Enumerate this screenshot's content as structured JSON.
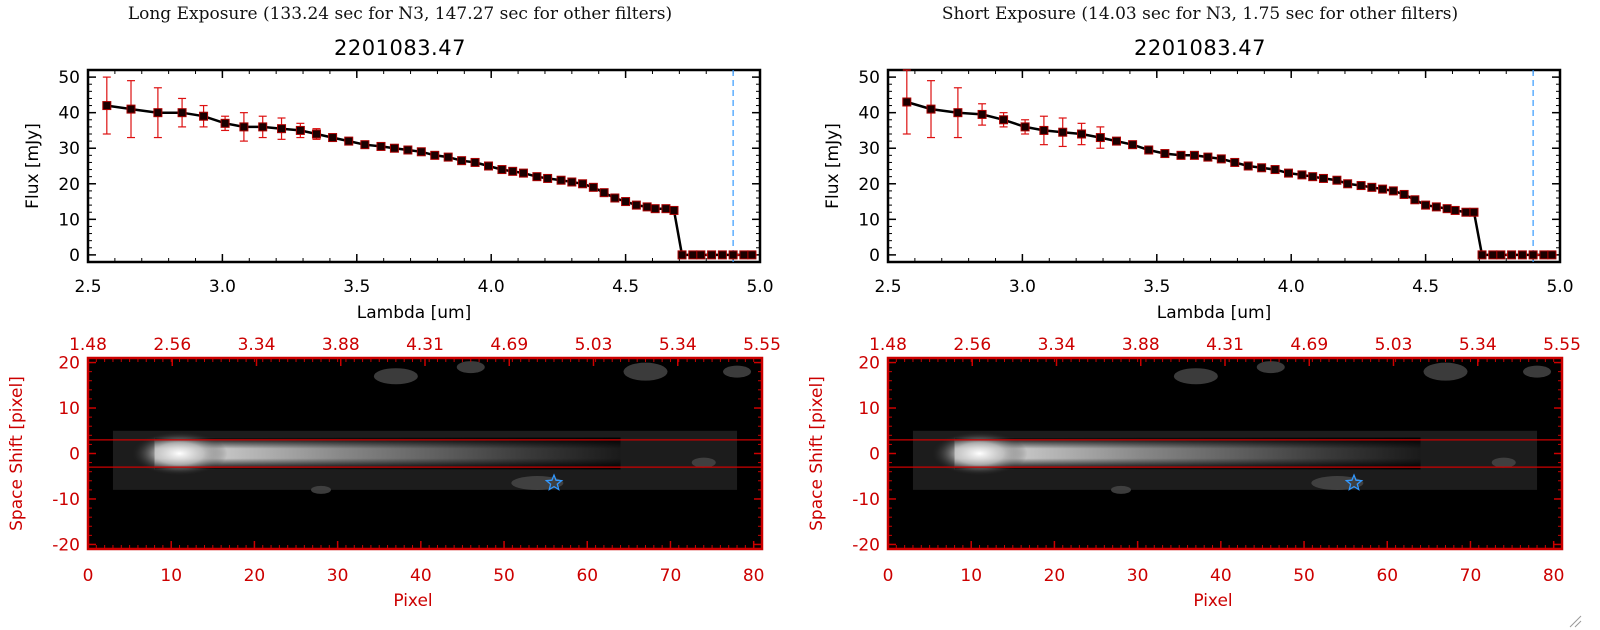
{
  "colors": {
    "red": "#cc0000",
    "line": "#000000",
    "errorbar": "#dd1111",
    "dashed": "#3399ff",
    "star": "#3399ff"
  },
  "panels": [
    {
      "exposure_title": "Long Exposure (133.24 sec for N3, 147.27 sec for other filters)",
      "plot_title": "2201083.47"
    },
    {
      "exposure_title": "Short Exposure (14.03 sec for N3, 1.75 sec for other filters)",
      "plot_title": "2201083.47"
    }
  ],
  "chart_data": [
    {
      "type": "line",
      "title": "2201083.47",
      "xlabel": "Lambda [um]",
      "ylabel": "Flux [mJy]",
      "xlim": [
        2.5,
        5.0
      ],
      "ylim": [
        -2,
        52
      ],
      "xticks": [
        "2.5",
        "3.0",
        "3.5",
        "4.0",
        "4.5",
        "5.0"
      ],
      "yticks": [
        "0",
        "10",
        "20",
        "30",
        "40",
        "50"
      ],
      "vline_x": 4.9,
      "series": [
        {
          "name": "flux",
          "x": [
            2.57,
            2.66,
            2.76,
            2.85,
            2.93,
            3.01,
            3.08,
            3.15,
            3.22,
            3.29,
            3.35,
            3.41,
            3.47,
            3.53,
            3.59,
            3.64,
            3.69,
            3.74,
            3.79,
            3.84,
            3.89,
            3.94,
            3.99,
            4.04,
            4.08,
            4.12,
            4.17,
            4.21,
            4.26,
            4.3,
            4.34,
            4.38,
            4.42,
            4.46,
            4.5,
            4.54,
            4.58,
            4.61,
            4.65,
            4.68,
            4.71,
            4.75,
            4.78,
            4.82,
            4.86,
            4.9,
            4.94,
            4.97
          ],
          "y": [
            42,
            41,
            40,
            40,
            39,
            37,
            36,
            36,
            35.5,
            35,
            34,
            33,
            32,
            31,
            30.5,
            30,
            29.5,
            29,
            28,
            27.5,
            26.5,
            26,
            25,
            24,
            23.5,
            23,
            22,
            21.5,
            21,
            20.5,
            20,
            19,
            17.5,
            16,
            15,
            14,
            13.5,
            13,
            13,
            12.5,
            0,
            0,
            0,
            0,
            0,
            0,
            0,
            0
          ],
          "err": [
            8,
            8,
            7,
            4,
            3,
            2,
            4,
            3,
            3,
            2,
            1.5,
            1,
            1,
            1,
            1,
            1,
            1,
            1,
            1,
            1,
            1,
            1,
            1,
            1,
            1,
            1,
            1,
            1,
            1,
            1,
            1,
            1,
            1,
            1,
            1,
            1,
            1,
            1,
            1,
            1,
            0,
            0,
            0,
            0,
            0,
            0,
            0,
            0
          ]
        }
      ]
    },
    {
      "type": "heatmap",
      "xlabel": "Pixel",
      "ylabel": "Space Shift [pixel]",
      "xlim": [
        0,
        81
      ],
      "ylim": [
        -21,
        21
      ],
      "xticks": [
        "0",
        "10",
        "20",
        "30",
        "40",
        "50",
        "60",
        "70",
        "80"
      ],
      "yticks": [
        "20",
        "10",
        "0",
        "-10",
        "-20"
      ],
      "top_ticks": [
        "1.48",
        "2.56",
        "3.34",
        "3.88",
        "4.31",
        "4.69",
        "5.03",
        "5.34",
        "5.55"
      ],
      "aperture_rows": [
        3,
        -3
      ],
      "star_marker": [
        56,
        -6.5
      ]
    },
    {
      "type": "line",
      "title": "2201083.47",
      "xlabel": "Lambda [um]",
      "ylabel": "Flux [mJy]",
      "xlim": [
        2.5,
        5.0
      ],
      "ylim": [
        -2,
        52
      ],
      "xticks": [
        "2.5",
        "3.0",
        "3.5",
        "4.0",
        "4.5",
        "5.0"
      ],
      "yticks": [
        "0",
        "10",
        "20",
        "30",
        "40",
        "50"
      ],
      "vline_x": 4.9,
      "series": [
        {
          "name": "flux",
          "x": [
            2.57,
            2.66,
            2.76,
            2.85,
            2.93,
            3.01,
            3.08,
            3.15,
            3.22,
            3.29,
            3.35,
            3.41,
            3.47,
            3.53,
            3.59,
            3.64,
            3.69,
            3.74,
            3.79,
            3.84,
            3.89,
            3.94,
            3.99,
            4.04,
            4.08,
            4.12,
            4.17,
            4.21,
            4.26,
            4.3,
            4.34,
            4.38,
            4.42,
            4.46,
            4.5,
            4.54,
            4.58,
            4.61,
            4.65,
            4.68,
            4.71,
            4.75,
            4.78,
            4.82,
            4.86,
            4.9,
            4.94,
            4.97
          ],
          "y": [
            43,
            41,
            40,
            39.5,
            38,
            36,
            35,
            34.5,
            34,
            33,
            32,
            31,
            29.5,
            28.5,
            28,
            28,
            27.5,
            27,
            26,
            25,
            24.5,
            24,
            23,
            22.5,
            22,
            21.5,
            21,
            20,
            19.5,
            19,
            18.5,
            18,
            17,
            15.5,
            14,
            13.5,
            13,
            12.5,
            12,
            12,
            0,
            0,
            0,
            0,
            0,
            0,
            0,
            0
          ],
          "err": [
            9,
            8,
            7,
            3,
            2,
            2,
            4,
            4,
            3,
            3,
            1,
            1,
            1,
            1,
            1,
            1,
            1,
            1,
            1,
            1,
            1,
            1,
            1,
            1,
            1,
            1,
            1,
            1,
            1,
            1,
            1,
            1,
            1,
            1,
            1,
            1,
            1,
            1,
            1,
            1,
            0,
            0,
            0,
            0,
            0,
            0,
            0,
            0
          ]
        }
      ]
    },
    {
      "type": "heatmap",
      "xlabel": "Pixel",
      "ylabel": "Space Shift [pixel]",
      "xlim": [
        0,
        81
      ],
      "ylim": [
        -21,
        21
      ],
      "xticks": [
        "0",
        "10",
        "20",
        "30",
        "40",
        "50",
        "60",
        "70",
        "80"
      ],
      "yticks": [
        "20",
        "10",
        "0",
        "-10",
        "-20"
      ],
      "top_ticks": [
        "1.48",
        "2.56",
        "3.34",
        "3.88",
        "4.31",
        "4.69",
        "5.03",
        "5.34",
        "5.55"
      ],
      "aperture_rows": [
        3,
        -3
      ],
      "star_marker": [
        56,
        -6.5
      ]
    }
  ]
}
